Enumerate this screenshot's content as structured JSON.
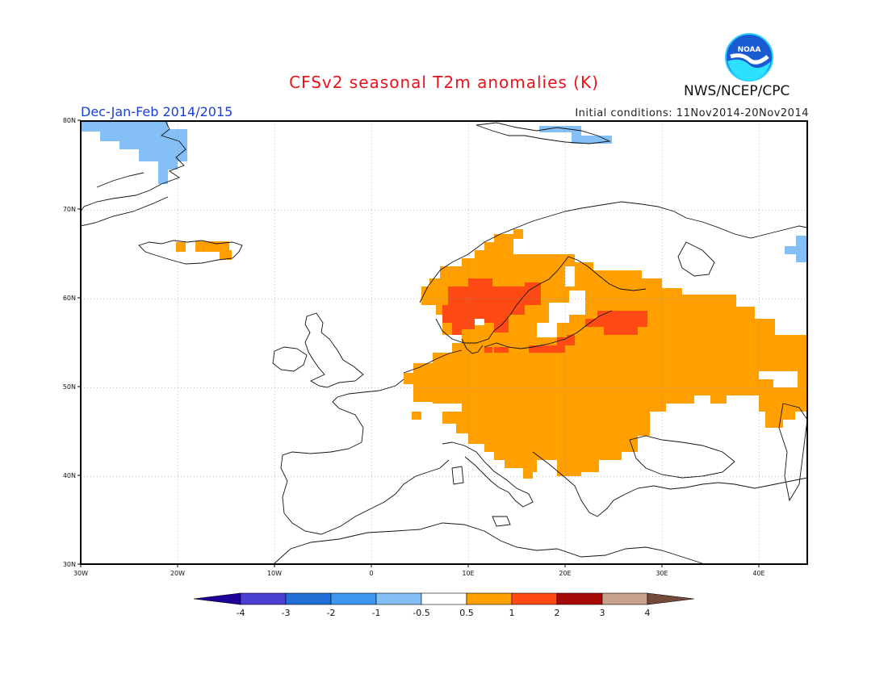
{
  "title": "CFSv2 seasonal T2m anomalies (K)",
  "period": "Dec-Jan-Feb 2014/2015",
  "initial_conditions": "Initial conditions: 11Nov2014-20Nov2014",
  "agency": "NWS/NCEP/CPC",
  "logo_text": "NOAA",
  "map": {
    "lon_range": [
      -30,
      45
    ],
    "lat_range": [
      30,
      80
    ],
    "lon_ticks": [
      "30W",
      "20W",
      "10W",
      "0",
      "10E",
      "20E",
      "30E",
      "40E"
    ],
    "lat_ticks": [
      "30N",
      "40N",
      "50N",
      "60N",
      "70N",
      "80N"
    ],
    "gridlines": true
  },
  "colorbar": {
    "labels": [
      "-4",
      "-3",
      "-2",
      "-1",
      "-0.5",
      "0.5",
      "1",
      "2",
      "3",
      "4"
    ],
    "colors": [
      "#20009a",
      "#4a3ed3",
      "#1f6fd6",
      "#3f96ee",
      "#84c0f6",
      "#ffffff",
      "#ffa000",
      "#ff4a14",
      "#a80a0a",
      "#c8a08c",
      "#754a3a"
    ]
  },
  "anomaly_regions": [
    {
      "name": "Svalbard-north area",
      "class": "-1 to -0.5",
      "color": "#84c0f6",
      "lon": [
        -29.5,
        -20.5
      ],
      "lat": [
        75,
        79.5
      ]
    },
    {
      "name": "Svalbard-east area",
      "class": "-1 to -0.5",
      "color": "#84c0f6",
      "lon": [
        19,
        27
      ],
      "lat": [
        77.5,
        79
      ]
    },
    {
      "name": "NW Russia coast",
      "class": "-1 to -0.5",
      "color": "#84c0f6",
      "lon": [
        43.5,
        45
      ],
      "lat": [
        64.2,
        67
      ]
    },
    {
      "name": "Iceland",
      "class": "0.5 to 1",
      "color": "#ffa000",
      "lon": [
        -20,
        -16
      ],
      "lat": [
        64.5,
        66
      ]
    },
    {
      "name": "Europe warm",
      "class": "0.5 to 1",
      "color": "#ffa000",
      "lon": [
        3.5,
        45
      ],
      "lat": [
        39.8,
        66
      ]
    },
    {
      "name": "Scandinavia",
      "class": "1 to 2",
      "color": "#ff4a14",
      "lon": [
        8,
        17.5
      ],
      "lat": [
        56.6,
        61.5
      ]
    },
    {
      "name": "Baltic strip",
      "class": "1 to 2",
      "color": "#ff4a14",
      "lon": [
        16.5,
        21
      ],
      "lat": [
        53.9,
        55
      ]
    },
    {
      "name": "Western Russia",
      "class": "1 to 2",
      "color": "#ff4a14",
      "lon": [
        24,
        29
      ],
      "lat": [
        56,
        58.5
      ]
    }
  ]
}
